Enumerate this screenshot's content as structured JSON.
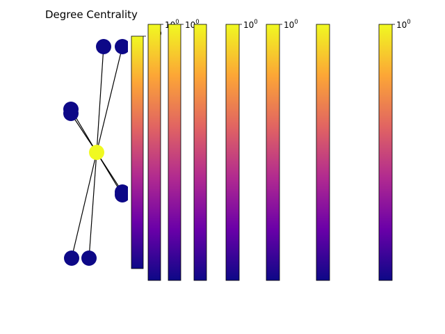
{
  "title": "Degree Centrality",
  "colormap": {
    "name": "plasma",
    "stops": [
      "#0d0887",
      "#6a00a8",
      "#b12a90",
      "#e16462",
      "#fca636",
      "#f0f921"
    ]
  },
  "graph": {
    "node_colors": {
      "high": "#f0f921",
      "low": "#0d0887"
    },
    "edge_color": "#000000",
    "nodes": [
      {
        "id": "center",
        "level": "high"
      },
      {
        "id": "top-a",
        "level": "low"
      },
      {
        "id": "top-b",
        "level": "low"
      },
      {
        "id": "left-a",
        "level": "low"
      },
      {
        "id": "left-b",
        "level": "low"
      },
      {
        "id": "right-a",
        "level": "low"
      },
      {
        "id": "right-b",
        "level": "low"
      },
      {
        "id": "bottom-a",
        "level": "low"
      },
      {
        "id": "bottom-b",
        "level": "low"
      }
    ],
    "edges": [
      [
        "center",
        "top-a"
      ],
      [
        "center",
        "top-b"
      ],
      [
        "center",
        "left-a"
      ],
      [
        "center",
        "left-b"
      ],
      [
        "center",
        "right-a"
      ],
      [
        "center",
        "right-b"
      ],
      [
        "center",
        "bottom-a"
      ],
      [
        "center",
        "bottom-b"
      ]
    ]
  },
  "colorbars": [
    {
      "tick": {
        "base": "10",
        "exp": "0"
      }
    },
    {
      "tick": {
        "base": "10",
        "exp": "0"
      }
    },
    {
      "tick": {
        "base": "10",
        "exp": "0"
      }
    },
    {
      "tick": {
        "base": "",
        "exp": ""
      }
    },
    {
      "tick": {
        "base": "10",
        "exp": "0"
      }
    },
    {
      "tick": {
        "base": "10",
        "exp": "0"
      }
    },
    {
      "tick": {
        "base": "",
        "exp": ""
      }
    },
    {
      "tick": {
        "base": "10",
        "exp": "0"
      }
    }
  ]
}
